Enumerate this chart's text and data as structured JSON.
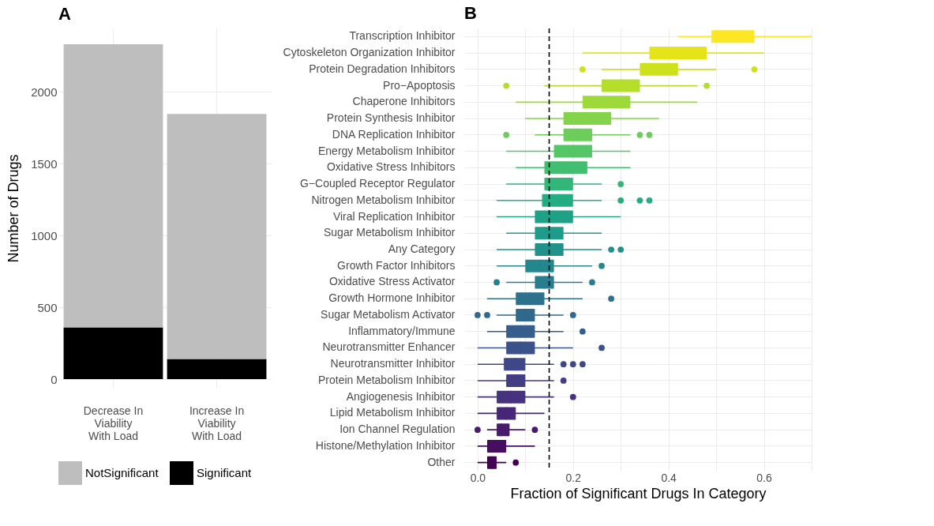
{
  "chart_data": [
    {
      "type": "bar",
      "title": "A",
      "ylabel": "Number of Drugs",
      "stacked": true,
      "categories": [
        "Decrease In\nViability\nWith Load",
        "Increase In\nViability\nWith Load"
      ],
      "series": [
        {
          "name": "Significant",
          "color": "#000000",
          "values": [
            360,
            140
          ]
        },
        {
          "name": "NotSignificant",
          "color": "#bebebe",
          "values": [
            1970,
            1705
          ]
        }
      ],
      "ylim": [
        -60,
        2440
      ],
      "yticks": [
        0,
        500,
        1000,
        1500,
        2000
      ],
      "grid": true,
      "legend": "bottom"
    },
    {
      "type": "box",
      "title": "B",
      "xlabel": "Fraction of Significant Drugs In Category",
      "orientation": "horizontal",
      "categories": [
        "Transcription Inhibitor",
        "Cytoskeleton Organization Inhibitor",
        "Protein Degradation Inhibitors",
        "Pro−Apoptosis",
        "Chaperone Inhibitors",
        "Protein Synthesis Inhibitor",
        "DNA Replication Inhibitor",
        "Energy Metabolism Inhibitor",
        "Oxidative Stress Inhibitors",
        "G−Coupled Receptor Regulator",
        "Nitrogen Metabolism Inhibitor",
        "Viral Replication Inhibitor",
        "Sugar Metabolism Inhibitor",
        "Any Category",
        "Growth Factor Inhibitors",
        "Oxidative Stress Activator",
        "Growth Hormone Inhibitor",
        "Sugar Metabolism Activator",
        "Inflammatory/Immune",
        "Neurotransmitter Enhancer",
        "Neurotransmitter Inhibitor",
        "Protein Metabolism Inhibitor",
        "Angiogenesis Inhibitor",
        "Lipid Metabolism Inhibitor",
        "Ion Channel Regulation",
        "Histone/Methylation Inhibitor",
        "Other"
      ],
      "colors": [
        "#fde725",
        "#e5e419",
        "#cde11d",
        "#b5de2b",
        "#9dd93b",
        "#84d44b",
        "#6ccd5a",
        "#55c667",
        "#42be71",
        "#32b67a",
        "#25ac82",
        "#1fa187",
        "#1e9b8a",
        "#21918c",
        "#24878e",
        "#287d8e",
        "#2c728e",
        "#31688e",
        "#355e8d",
        "#3b528b",
        "#3f4788",
        "#433d84",
        "#46327e",
        "#482677",
        "#481a6c",
        "#470d60",
        "#440154"
      ],
      "boxes": [
        {
          "low": 0.42,
          "q1": 0.49,
          "median": 0.54,
          "q3": 0.58,
          "high": 0.7
        },
        {
          "low": 0.22,
          "q1": 0.36,
          "median": 0.42,
          "q3": 0.48,
          "high": 0.6
        },
        {
          "low": 0.26,
          "q1": 0.34,
          "median": 0.38,
          "q3": 0.42,
          "high": 0.5,
          "outliers": [
            0.22,
            0.58
          ]
        },
        {
          "low": 0.14,
          "q1": 0.26,
          "median": 0.3,
          "q3": 0.34,
          "high": 0.46,
          "outliers": [
            0.06,
            0.48
          ]
        },
        {
          "low": 0.08,
          "q1": 0.22,
          "median": 0.27,
          "q3": 0.32,
          "high": 0.46
        },
        {
          "low": 0.1,
          "q1": 0.18,
          "median": 0.23,
          "q3": 0.28,
          "high": 0.38
        },
        {
          "low": 0.12,
          "q1": 0.18,
          "median": 0.21,
          "q3": 0.24,
          "high": 0.32,
          "outliers": [
            0.06,
            0.34,
            0.36
          ]
        },
        {
          "low": 0.06,
          "q1": 0.16,
          "median": 0.2,
          "q3": 0.24,
          "high": 0.32
        },
        {
          "low": 0.08,
          "q1": 0.14,
          "median": 0.18,
          "q3": 0.23,
          "high": 0.32
        },
        {
          "low": 0.06,
          "q1": 0.14,
          "median": 0.17,
          "q3": 0.2,
          "high": 0.26,
          "outliers": [
            0.3
          ]
        },
        {
          "low": 0.04,
          "q1": 0.135,
          "median": 0.17,
          "q3": 0.2,
          "high": 0.26,
          "outliers": [
            0.3,
            0.34,
            0.36
          ]
        },
        {
          "low": 0.04,
          "q1": 0.12,
          "median": 0.16,
          "q3": 0.2,
          "high": 0.3
        },
        {
          "low": 0.06,
          "q1": 0.12,
          "median": 0.15,
          "q3": 0.18,
          "high": 0.26
        },
        {
          "low": 0.04,
          "q1": 0.12,
          "median": 0.15,
          "q3": 0.18,
          "high": 0.26,
          "outliers": [
            0.28,
            0.3
          ]
        },
        {
          "low": 0.04,
          "q1": 0.1,
          "median": 0.13,
          "q3": 0.16,
          "high": 0.24,
          "outliers": [
            0.26
          ]
        },
        {
          "low": 0.06,
          "q1": 0.12,
          "median": 0.14,
          "q3": 0.16,
          "high": 0.22,
          "outliers": [
            0.04,
            0.24
          ]
        },
        {
          "low": 0.02,
          "q1": 0.08,
          "median": 0.11,
          "q3": 0.14,
          "high": 0.22,
          "outliers": [
            0.28
          ]
        },
        {
          "low": 0.04,
          "q1": 0.08,
          "median": 0.1,
          "q3": 0.12,
          "high": 0.18,
          "outliers": [
            0.0,
            0.02,
            0.2
          ]
        },
        {
          "low": 0.02,
          "q1": 0.06,
          "median": 0.09,
          "q3": 0.12,
          "high": 0.18,
          "outliers": [
            0.22
          ]
        },
        {
          "low": 0.0,
          "q1": 0.06,
          "median": 0.09,
          "q3": 0.12,
          "high": 0.2,
          "outliers": [
            0.26
          ]
        },
        {
          "low": 0.0,
          "q1": 0.055,
          "median": 0.08,
          "q3": 0.1,
          "high": 0.16,
          "outliers": [
            0.18,
            0.2,
            0.22
          ]
        },
        {
          "low": 0.0,
          "q1": 0.06,
          "median": 0.08,
          "q3": 0.1,
          "high": 0.16,
          "outliers": [
            0.18
          ]
        },
        {
          "low": 0.0,
          "q1": 0.04,
          "median": 0.07,
          "q3": 0.1,
          "high": 0.16,
          "outliers": [
            0.2
          ]
        },
        {
          "low": 0.0,
          "q1": 0.04,
          "median": 0.06,
          "q3": 0.08,
          "high": 0.14
        },
        {
          "low": 0.02,
          "q1": 0.04,
          "median": 0.05,
          "q3": 0.067,
          "high": 0.1,
          "outliers": [
            0.0,
            0.12
          ]
        },
        {
          "low": 0.0,
          "q1": 0.02,
          "median": 0.04,
          "q3": 0.06,
          "high": 0.12
        },
        {
          "low": 0.0,
          "q1": 0.02,
          "median": 0.03,
          "q3": 0.04,
          "high": 0.06,
          "outliers": [
            0.08
          ]
        }
      ],
      "xlim": [
        -0.028,
        0.7
      ],
      "xticks": [
        {
          "value": 0,
          "label": "0.0"
        },
        {
          "value": 0.1,
          "label": null
        },
        0.2,
        {
          "value": 0.3,
          "label": null
        },
        0.4,
        {
          "value": 0.5,
          "label": null
        },
        0.6,
        {
          "value": 0.7,
          "label": null
        }
      ],
      "ref_lines": [
        {
          "axis": "x",
          "value": 0.15,
          "color": "#000000",
          "line_style": "dashed"
        }
      ],
      "grid": true
    }
  ]
}
